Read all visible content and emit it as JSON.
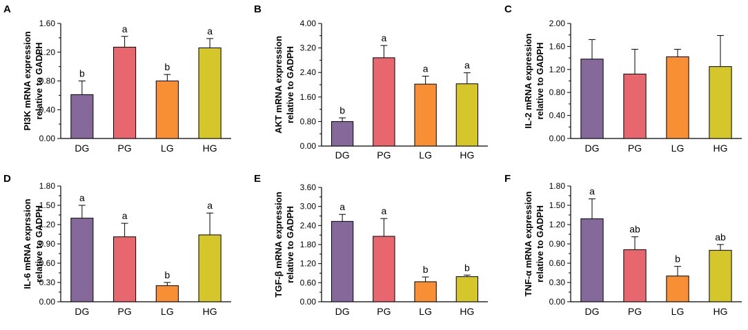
{
  "colors": {
    "DG": "#84699a",
    "PG": "#e8676f",
    "LG": "#f98f35",
    "HG": "#d4c62b"
  },
  "chart_data": [
    {
      "type": "bar",
      "panel": "A",
      "ylabel_lines": [
        "PI3K mRNA expression",
        "relative to GADPH"
      ],
      "categories": [
        "DG",
        "PG",
        "LG",
        "HG"
      ],
      "values": [
        0.61,
        1.27,
        0.8,
        1.26
      ],
      "errors": [
        0.19,
        0.15,
        0.09,
        0.13
      ],
      "significance": [
        "b",
        "a",
        "b",
        "a"
      ],
      "ylim": [
        0,
        1.6
      ],
      "yticks": [
        "0.00",
        "0.40",
        "0.80",
        "1.20",
        "1.60"
      ]
    },
    {
      "type": "bar",
      "panel": "B",
      "ylabel_lines": [
        "AKT mRNA expression",
        "relative to GADPH"
      ],
      "categories": [
        "DG",
        "PG",
        "LG",
        "HG"
      ],
      "values": [
        0.8,
        2.88,
        2.02,
        2.03
      ],
      "errors": [
        0.12,
        0.4,
        0.26,
        0.36
      ],
      "significance": [
        "b",
        "a",
        "a",
        "a"
      ],
      "ylim": [
        0,
        4.0
      ],
      "yticks": [
        "0.00",
        "0.80",
        "1.60",
        "2.40",
        "3.20",
        "4.00"
      ]
    },
    {
      "type": "bar",
      "panel": "C",
      "ylabel_lines": [
        "IL-2 mRNA expression",
        "relative to GADPH"
      ],
      "categories": [
        "DG",
        "PG",
        "LG",
        "HG"
      ],
      "values": [
        1.38,
        1.12,
        1.42,
        1.25
      ],
      "errors": [
        0.34,
        0.43,
        0.13,
        0.54
      ],
      "significance": [
        "",
        "",
        "",
        ""
      ],
      "ylim": [
        0,
        2.0
      ],
      "yticks": [
        "0.00",
        "0.40",
        "0.80",
        "1.20",
        "1.60",
        "2.00"
      ]
    },
    {
      "type": "bar",
      "panel": "D",
      "ylabel_lines": [
        "IL-6 mRNA exprssion",
        "relative to GADPH"
      ],
      "categories": [
        "DG",
        "PG",
        "LG",
        "HG"
      ],
      "values": [
        1.3,
        1.01,
        0.25,
        1.04
      ],
      "errors": [
        0.2,
        0.21,
        0.05,
        0.34
      ],
      "significance": [
        "a",
        "a",
        "b",
        "a"
      ],
      "ylim": [
        0,
        1.8
      ],
      "yticks": [
        "0.00",
        "0.30",
        "0.60",
        "0.90",
        "1.20",
        "1.50",
        "1.80"
      ]
    },
    {
      "type": "bar",
      "panel": "E",
      "ylabel_lines": [
        "TGF-β mRNA expression",
        "relative to GADPH"
      ],
      "categories": [
        "DG",
        "PG",
        "LG",
        "HG"
      ],
      "values": [
        2.53,
        2.06,
        0.63,
        0.79
      ],
      "errors": [
        0.22,
        0.56,
        0.15,
        0.05
      ],
      "significance": [
        "a",
        "a",
        "b",
        "b"
      ],
      "ylim": [
        0,
        3.6
      ],
      "yticks": [
        "0.00",
        "0.60",
        "1.20",
        "1.80",
        "2.40",
        "3.00",
        "3.60"
      ]
    },
    {
      "type": "bar",
      "panel": "F",
      "ylabel_lines": [
        "TNF-α mRNA expression",
        "relative to GADPH"
      ],
      "categories": [
        "DG",
        "PG",
        "LG",
        "HG"
      ],
      "values": [
        1.29,
        0.81,
        0.4,
        0.8
      ],
      "errors": [
        0.31,
        0.2,
        0.15,
        0.09
      ],
      "significance": [
        "a",
        "ab",
        "b",
        "ab"
      ],
      "ylim": [
        0,
        1.8
      ],
      "yticks": [
        "0.00",
        "0.30",
        "0.60",
        "0.90",
        "1.20",
        "1.50",
        "1.80"
      ]
    }
  ]
}
